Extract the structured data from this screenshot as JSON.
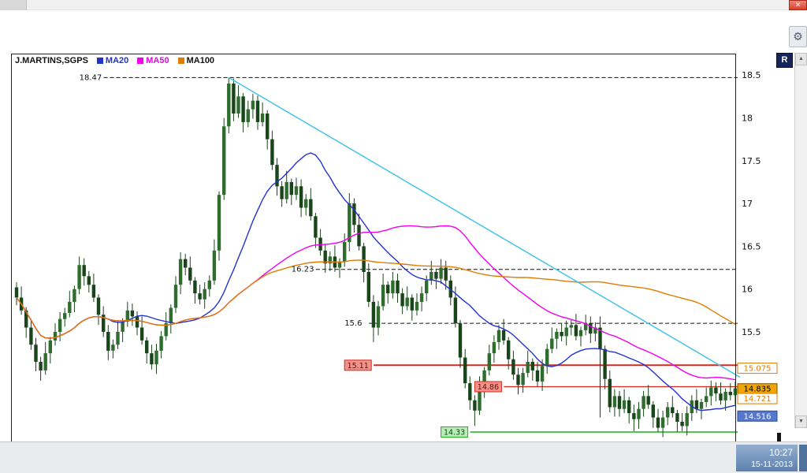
{
  "window": {
    "close_glyph": "✕",
    "gear_glyph": "⚙",
    "r_button_label": "R",
    "scroll_up_glyph": "▲",
    "scroll_down_glyph": "▼"
  },
  "statusbar": {
    "time": "10:27",
    "date": "15-11-2013"
  },
  "chart_data": {
    "type": "candlestick",
    "title": "J.MARTINS,SGPS",
    "legend_position": "top-left",
    "grid": false,
    "y_axis": {
      "max": 18.75,
      "min": 14.1,
      "ticks": [
        "18.5",
        "18",
        "17.5",
        "17",
        "16.5",
        "16",
        "15.5"
      ]
    },
    "first_open": 16.02,
    "closes": [
      15.9,
      15.75,
      15.55,
      15.35,
      15.15,
      15.05,
      15.25,
      15.4,
      15.5,
      15.65,
      15.72,
      15.85,
      16.0,
      16.28,
      16.15,
      16.05,
      15.9,
      15.7,
      15.5,
      15.28,
      15.35,
      15.5,
      15.62,
      15.75,
      15.68,
      15.55,
      15.4,
      15.25,
      15.12,
      15.28,
      15.45,
      15.6,
      15.78,
      16.05,
      16.35,
      16.25,
      16.1,
      15.95,
      15.88,
      16.0,
      16.1,
      16.45,
      17.1,
      17.9,
      18.4,
      18.05,
      18.25,
      17.95,
      18.1,
      18.2,
      17.95,
      18.05,
      17.75,
      17.45,
      17.2,
      17.05,
      17.25,
      17.1,
      17.2,
      16.95,
      17.05,
      16.85,
      16.6,
      16.45,
      16.3,
      16.38,
      16.25,
      16.32,
      16.55,
      17.0,
      16.75,
      16.5,
      16.2,
      15.85,
      15.55,
      15.8,
      16.05,
      15.95,
      16.1,
      15.95,
      15.8,
      15.9,
      15.75,
      15.85,
      15.95,
      16.1,
      16.2,
      16.12,
      16.25,
      16.1,
      15.9,
      15.6,
      15.2,
      14.9,
      14.7,
      14.58,
      14.85,
      15.05,
      15.25,
      15.38,
      15.52,
      15.4,
      15.18,
      15.0,
      14.88,
      15.02,
      15.15,
      15.05,
      14.92,
      15.1,
      15.3,
      15.42,
      15.5,
      15.45,
      15.55,
      15.58,
      15.45,
      15.52,
      15.6,
      15.48,
      15.55,
      15.3,
      14.95,
      14.62,
      14.75,
      14.6,
      14.7,
      14.55,
      14.48,
      14.6,
      14.75,
      14.65,
      14.5,
      14.38,
      14.5,
      14.62,
      14.55,
      14.45,
      14.4,
      14.55,
      14.7,
      14.6,
      14.68,
      14.75,
      14.85,
      14.78,
      14.7,
      14.8,
      14.76,
      14.84
    ],
    "wick_high": [
      0.06,
      0.13,
      0.04,
      0.1,
      0.08
    ],
    "wick_low": [
      0.09,
      0.05,
      0.12,
      0.06,
      0.11
    ],
    "overrides": {
      "5": {
        "low": 14.93
      },
      "44": {
        "high": 18.47,
        "low": 17.82
      },
      "69": {
        "high": 17.12
      },
      "74": {
        "low": 15.38
      },
      "95": {
        "low": 14.4
      },
      "121": {
        "low": 14.5
      },
      "128": {
        "low": 14.34
      },
      "133": {
        "low": 14.33
      },
      "138": {
        "low": 14.34
      }
    },
    "colors": {
      "up": "#2f6d2f",
      "down": "#1a451a",
      "wick": "#1a451a"
    },
    "ma": [
      {
        "name": "MA20",
        "window": 20,
        "color": "#2233cc",
        "label_color": "#2233cc"
      },
      {
        "name": "MA50",
        "window": 50,
        "color": "#ee00ee",
        "label_color": "#ee00ee"
      },
      {
        "name": "MA100",
        "window": 100,
        "color": "#e07b00",
        "label_color": "#111111"
      }
    ],
    "trendline": {
      "color": "#45c3e8",
      "from": {
        "index": 44,
        "price": 18.47
      },
      "to": {
        "index": 150,
        "price": 14.97
      }
    },
    "hlines": [
      {
        "price": 18.47,
        "label": "18.47",
        "style": "dashed",
        "color": "#111111",
        "width": 1,
        "from_index": 13,
        "label_bg": null,
        "label_color": "#111111"
      },
      {
        "price": 16.23,
        "label": "16.23",
        "style": "dashed",
        "color": "#111111",
        "width": 1,
        "from_index": 57,
        "label_bg": null,
        "label_color": "#111111"
      },
      {
        "price": 15.6,
        "label": "15.6",
        "style": "dashed",
        "color": "#111111",
        "width": 1,
        "from_index": 68,
        "label_bg": null,
        "label_color": "#111111"
      },
      {
        "price": 15.11,
        "label": "15.11",
        "style": "solid",
        "color": "#d42a1e",
        "width": 2,
        "from_index": 68,
        "label_bg": "#f4918a",
        "label_color": "#5a1008"
      },
      {
        "price": 14.86,
        "label": "14.86",
        "style": "solid",
        "color": "#d42a1e",
        "width": 1.3,
        "from_index": 95,
        "label_bg": "#f4918a",
        "label_color": "#5a1008"
      },
      {
        "price": 14.33,
        "label": "14.33",
        "style": "solid",
        "color": "#18b418",
        "width": 1.6,
        "from_index": 88,
        "label_bg": "#b9ecb9",
        "label_color": "#0c4a0c"
      }
    ],
    "price_tags": [
      {
        "value": "15.075",
        "bg": "#ffffff",
        "border": "#e07b00",
        "color": "#e07b00"
      },
      {
        "value": "14.835",
        "bg": "#f0a500",
        "border": "#7a5200",
        "color": "#000000"
      },
      {
        "value": "14.721",
        "bg": "#ffffff",
        "border": "#e07b00",
        "color": "#e07b00"
      },
      {
        "value": "14.516",
        "bg": "#5577cc",
        "border": "#334d99",
        "color": "#ffffff"
      }
    ]
  }
}
